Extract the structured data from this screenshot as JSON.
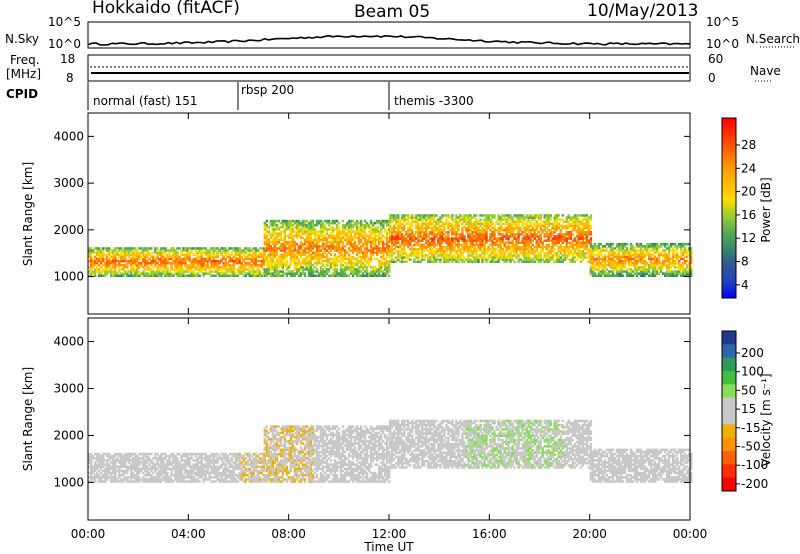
{
  "header": {
    "radar": "Hokkaido (fitACF)",
    "beam": "Beam 05",
    "date": "10/May/2013"
  },
  "sky_panel": {
    "left_label": "N.Sky",
    "right_label": "N.Search",
    "left_ticks": [
      "10^5",
      "10^0"
    ],
    "right_ticks": [
      "10^5",
      "10^0"
    ]
  },
  "freq_panel": {
    "left_label_1": "Freq.",
    "left_label_2": "[MHz]",
    "right_label": "Nave",
    "left_ticks": [
      "18",
      "8"
    ],
    "right_ticks": [
      "60",
      "0"
    ]
  },
  "cpid": {
    "label": "CPID",
    "modes": [
      {
        "name": "normal (fast) 151",
        "start_hour": 0
      },
      {
        "name": "rbsp 200",
        "start_hour": 6
      },
      {
        "name": "themis -3300",
        "start_hour": 12
      }
    ]
  },
  "x_axis": {
    "label": "Time UT",
    "ticks": [
      "00:00",
      "04:00",
      "08:00",
      "12:00",
      "16:00",
      "20:00",
      "00:00"
    ],
    "range_hours": [
      0,
      24
    ]
  },
  "power_panel": {
    "ylabel": "Slant Range [km]",
    "yticks": [
      "1000",
      "2000",
      "3000",
      "4000"
    ],
    "colorbar_label": "Power [dB]",
    "colorbar_ticks": [
      "28",
      "24",
      "20",
      "16",
      "12",
      "8",
      "4"
    ],
    "colorbar_colors": [
      "#ff0000",
      "#ff3300",
      "#ff6600",
      "#ff9900",
      "#ffbb00",
      "#ffdd00",
      "#99cc33",
      "#55aa55",
      "#338866",
      "#335599",
      "#2244bb",
      "#0000ff"
    ]
  },
  "velocity_panel": {
    "ylabel": "Slant Range [km]",
    "yticks": [
      "1000",
      "2000",
      "3000",
      "4000"
    ],
    "colorbar_label": "Velocity [m s⁻¹]",
    "colorbar_ticks": [
      "200",
      "100",
      "50",
      "15",
      "-15",
      "-50",
      "-100",
      "-200"
    ],
    "colorbar_colors": [
      "#1f3a8f",
      "#2c66a8",
      "#2f9a59",
      "#3fbf3f",
      "#88dd55",
      "#c8c8c8",
      "#c8c8c8",
      "#f0b000",
      "#ff9000",
      "#ff6000",
      "#ff3000",
      "#ff0000"
    ]
  },
  "chart_data": {
    "type": "heatmap",
    "title": "Hokkaido (fitACF)  Beam 05  10/May/2013",
    "xlabel": "Time UT",
    "ylabel": "Slant Range [km]",
    "xlim": [
      0,
      24
    ],
    "ylim": [
      200,
      4500
    ],
    "power_range_db": [
      0,
      32
    ],
    "velocity_range_mps": [
      -250,
      250
    ],
    "main_echo_bands": [
      {
        "time_start": 0.0,
        "time_end": 7.0,
        "range_start": 1000,
        "range_end": 1600,
        "power_db": 26
      },
      {
        "time_start": 7.0,
        "time_end": 12.0,
        "range_start": 1000,
        "range_end": 2200,
        "power_db": 25
      },
      {
        "time_start": 12.0,
        "time_end": 20.0,
        "range_start": 1300,
        "range_end": 2300,
        "power_db": 27
      },
      {
        "time_start": 20.0,
        "time_end": 24.0,
        "range_start": 1000,
        "range_end": 1700,
        "power_db": 24
      }
    ],
    "velocity_regions": [
      {
        "time_start": 0.0,
        "time_end": 15.0,
        "velocity_mps": 0
      },
      {
        "time_start": 15.0,
        "time_end": 19.0,
        "velocity_mps": 40
      },
      {
        "time_start": 6.0,
        "time_end": 9.0,
        "velocity_mps": -40
      }
    ]
  }
}
